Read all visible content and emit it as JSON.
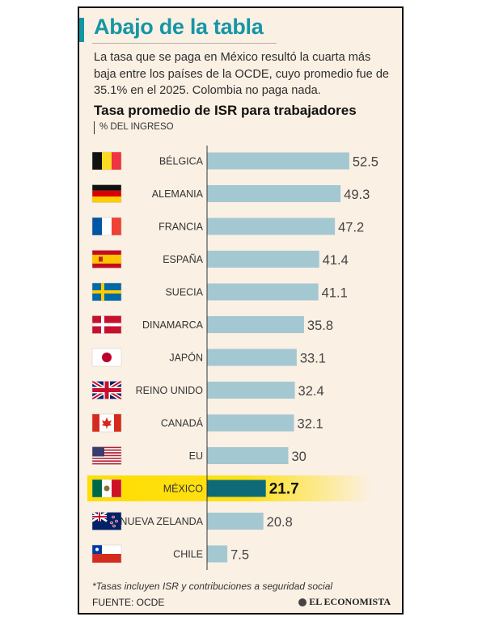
{
  "header": {
    "title": "Abajo de la tabla",
    "subtitle": "La tasa que se paga en México resultó la cuarta más baja entre los países de la OCDE, cuyo promedio fue de 35.1% en el 2025. Colombia no paga nada."
  },
  "chart_data": {
    "type": "bar",
    "orientation": "horizontal",
    "title": "Tasa promedio de ISR para trabajadores",
    "unit": "% DEL INGRESO",
    "categories": [
      "BÉLGICA",
      "ALEMANIA",
      "FRANCIA",
      "ESPAÑA",
      "SUECIA",
      "DINAMARCA",
      "JAPÓN",
      "REINO UNIDO",
      "CANADÁ",
      "EU",
      "MÉXICO",
      "NUEVA ZELANDA",
      "CHILE"
    ],
    "values": [
      52.5,
      49.3,
      47.2,
      41.4,
      41.1,
      35.8,
      33.1,
      32.4,
      32.1,
      30,
      21.7,
      20.8,
      7.5
    ],
    "value_labels": [
      "52.5",
      "49.3",
      "47.2",
      "41.4",
      "41.1",
      "35.8",
      "33.1",
      "32.4",
      "32.1",
      "30",
      "21.7",
      "20.8",
      "7.5"
    ],
    "flags": [
      "belgium-flag-icon",
      "germany-flag-icon",
      "france-flag-icon",
      "spain-flag-icon",
      "sweden-flag-icon",
      "denmark-flag-icon",
      "japan-flag-icon",
      "united-kingdom-flag-icon",
      "canada-flag-icon",
      "usa-flag-icon",
      "mexico-flag-icon",
      "new-zealand-flag-icon",
      "chile-flag-icon"
    ],
    "highlight": "MÉXICO",
    "xlim": [
      0,
      55
    ],
    "grid": false,
    "colors": {
      "bar": "#a4c8d2",
      "highlight_bar": "#0f6a78",
      "highlight_band": "#ffde00",
      "axis": "#333333"
    }
  },
  "footer": {
    "note": "*Tasas incluyen ISR y contribuciones a seguridad social",
    "source": "FUENTE: OCDE",
    "brand": "EL ECONOMISTA"
  }
}
